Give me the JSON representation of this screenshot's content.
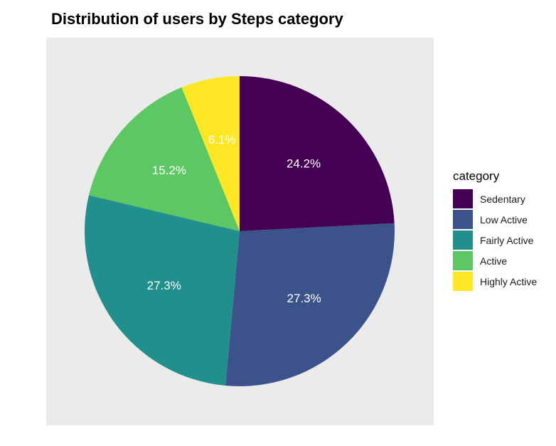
{
  "chart_data": {
    "type": "pie",
    "title": "Distribution of users by Steps category",
    "legend_title": "category",
    "legend_position": "right",
    "slices": [
      {
        "label": "Sedentary",
        "value": 24.2,
        "display": "24.2%",
        "color": "#440154"
      },
      {
        "label": "Low Active",
        "value": 27.3,
        "display": "27.3%",
        "color": "#3B528B"
      },
      {
        "label": "Fairly Active",
        "value": 27.3,
        "display": "27.3%",
        "color": "#21908C"
      },
      {
        "label": "Active",
        "value": 15.2,
        "display": "15.2%",
        "color": "#5DC863"
      },
      {
        "label": "Highly Active",
        "value": 6.1,
        "display": "6.1%",
        "color": "#FDE725"
      }
    ],
    "panel_background": "#EBEBEB"
  }
}
